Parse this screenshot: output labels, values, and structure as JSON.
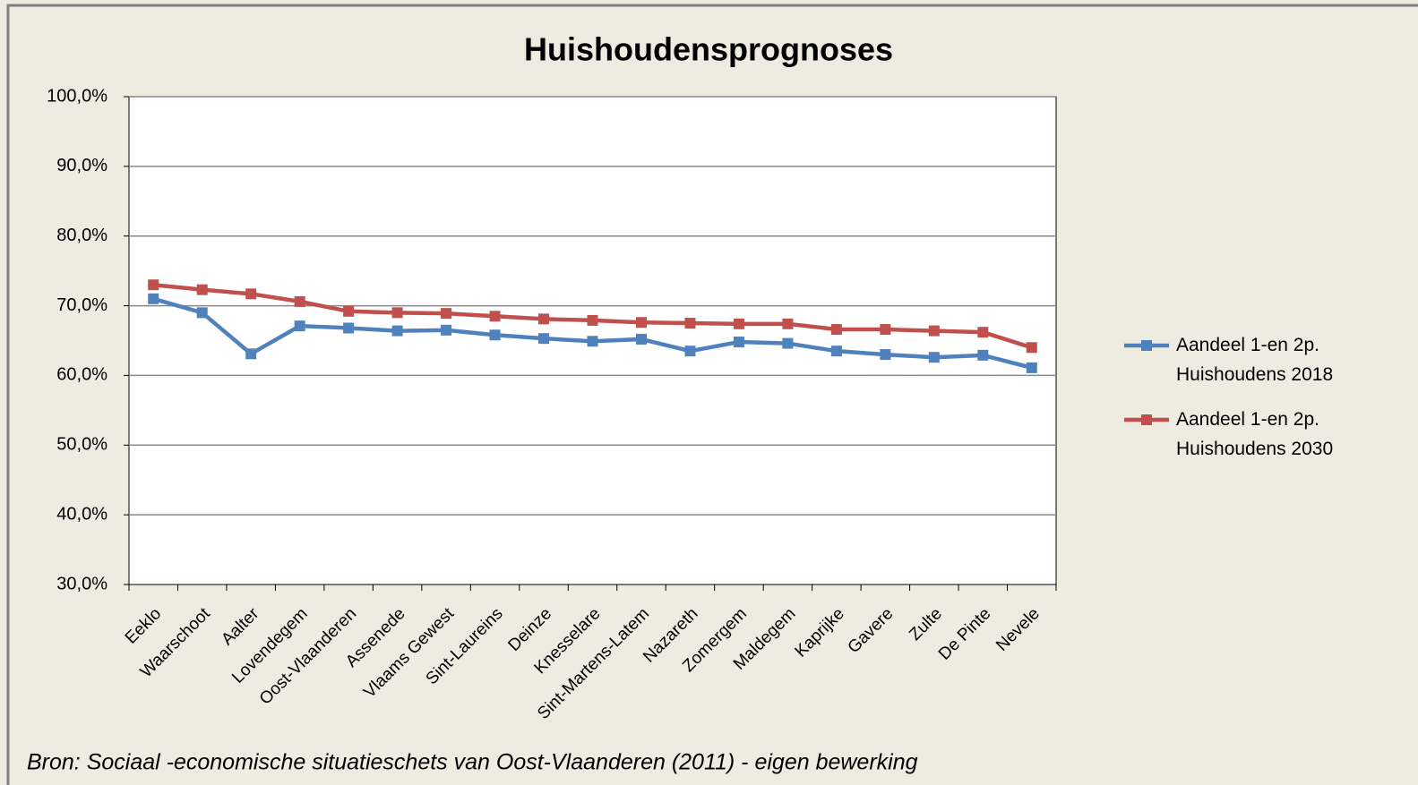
{
  "chart_data": {
    "type": "line",
    "title": "Huishoudensprognoses",
    "source": "Bron: Sociaal -economische situatieschets van Oost-Vlaanderen (2011) - eigen bewerking",
    "categories": [
      "Eeklo",
      "Waarschoot",
      "Aalter",
      "Lovendegem",
      "Oost-Vlaanderen",
      "Assenede",
      "Vlaams Gewest",
      "Sint-Laureins",
      "Deinze",
      "Knesselare",
      "Sint-Martens-Latem",
      "Nazareth",
      "Zomergem",
      "Maldegem",
      "Kaprijke",
      "Gavere",
      "Zulte",
      "De Pinte",
      "Nevele"
    ],
    "series": [
      {
        "name": "Aandeel 1-en 2p. Huishoudens 2018",
        "color": "#4f81bd",
        "values": [
          71.0,
          69.0,
          63.1,
          67.1,
          66.8,
          66.4,
          66.5,
          65.8,
          65.3,
          64.9,
          65.2,
          63.5,
          64.8,
          64.6,
          63.5,
          63.0,
          62.6,
          62.9,
          61.1
        ]
      },
      {
        "name": "Aandeel 1-en 2p. Huishoudens 2030",
        "color": "#c0504d",
        "values": [
          73.0,
          72.3,
          71.7,
          70.6,
          69.2,
          69.0,
          68.9,
          68.5,
          68.1,
          67.9,
          67.6,
          67.5,
          67.4,
          67.4,
          66.6,
          66.6,
          66.4,
          66.2,
          64.0
        ]
      }
    ],
    "ylim": [
      30,
      100
    ],
    "yticks": [
      {
        "value": 30,
        "label": "30,0%"
      },
      {
        "value": 40,
        "label": "40,0%"
      },
      {
        "value": 50,
        "label": "50,0%"
      },
      {
        "value": 60,
        "label": "60,0%"
      },
      {
        "value": 70,
        "label": "70,0%"
      },
      {
        "value": 80,
        "label": "80,0%"
      },
      {
        "value": 90,
        "label": "90,0%"
      },
      {
        "value": 100,
        "label": "100,0%"
      }
    ],
    "grid": true,
    "legend": "right"
  }
}
